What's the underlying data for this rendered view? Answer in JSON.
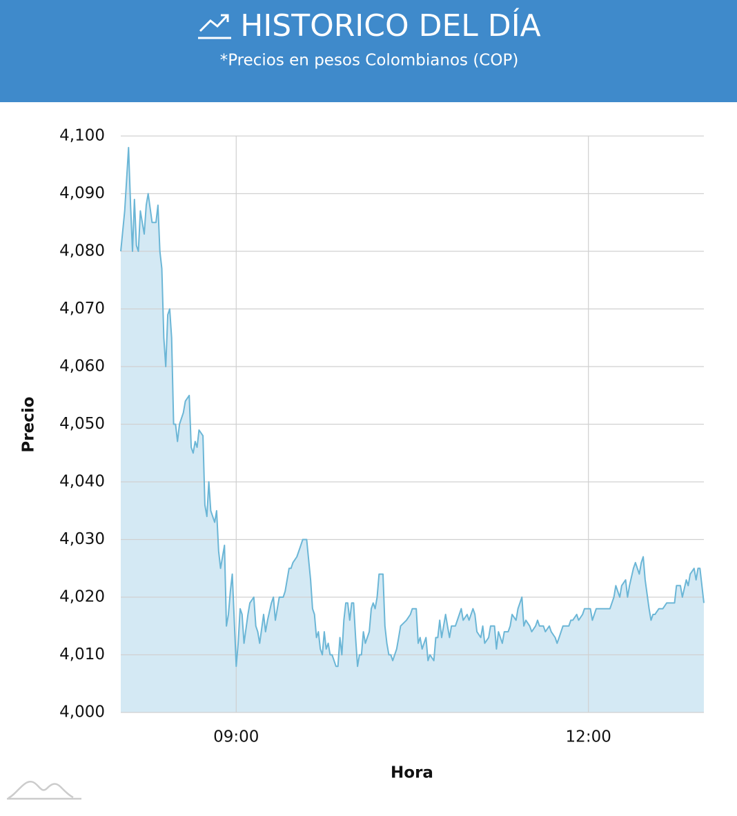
{
  "chart_data": {
    "type": "line",
    "title": "HISTORICO DEL DÍA",
    "subtitle": "*Precios en pesos Colombianos (COP)",
    "x_label": "Hora",
    "y_label": "Precio",
    "color": "#6bb6d6",
    "area": true,
    "area_color": "#d4e9f4",
    "grid": true,
    "xlim": [
      481,
      779
    ],
    "xticks": [
      {
        "value": 540,
        "label": "09:00"
      },
      {
        "value": 720,
        "label": "12:00"
      }
    ],
    "ylim": [
      4000,
      4100
    ],
    "yticks": [
      {
        "value": 4000,
        "label": "4,000"
      },
      {
        "value": 4010,
        "label": "4,010"
      },
      {
        "value": 4020,
        "label": "4,020"
      },
      {
        "value": 4030,
        "label": "4,030"
      },
      {
        "value": 4040,
        "label": "4,040"
      },
      {
        "value": 4050,
        "label": "4,050"
      },
      {
        "value": 4060,
        "label": "4,060"
      },
      {
        "value": 4070,
        "label": "4,070"
      },
      {
        "value": 4080,
        "label": "4,080"
      },
      {
        "value": 4090,
        "label": "4,090"
      },
      {
        "value": 4100,
        "label": "4,100"
      }
    ],
    "x": [
      481,
      483,
      485,
      486,
      487,
      488,
      489,
      490,
      491,
      493,
      494,
      495,
      497,
      499,
      500,
      501,
      502,
      503,
      504,
      505,
      506,
      507,
      508,
      509,
      510,
      511,
      513,
      514,
      516,
      517,
      518,
      519,
      520,
      521,
      523,
      524,
      525,
      526,
      527,
      529,
      530,
      531,
      532,
      534,
      535,
      536,
      537,
      538,
      540,
      541,
      542,
      543,
      544,
      546,
      547,
      549,
      550,
      551,
      552,
      554,
      555,
      556,
      558,
      559,
      560,
      562,
      564,
      565,
      567,
      568,
      569,
      571,
      573,
      574,
      576,
      578,
      579,
      580,
      581,
      582,
      583,
      584,
      585,
      586,
      587,
      588,
      589,
      591,
      592,
      593,
      594,
      595,
      596,
      597,
      598,
      599,
      600,
      601,
      602,
      603,
      604,
      605,
      606,
      608,
      609,
      610,
      611,
      612,
      613,
      615,
      616,
      617,
      618,
      619,
      620,
      622,
      623,
      624,
      627,
      629,
      630,
      632,
      633,
      634,
      635,
      637,
      638,
      639,
      641,
      642,
      643,
      644,
      645,
      647,
      648,
      649,
      650,
      652,
      654,
      655,
      656,
      658,
      659,
      661,
      662,
      663,
      665,
      666,
      667,
      669,
      670,
      672,
      673,
      674,
      676,
      677,
      679,
      680,
      681,
      683,
      684,
      686,
      687,
      688,
      690,
      691,
      693,
      694,
      695,
      697,
      698,
      700,
      701,
      703,
      704,
      705,
      707,
      708,
      710,
      711,
      712,
      714,
      715,
      717,
      718,
      720,
      721,
      722,
      724,
      726,
      728,
      730,
      731,
      733,
      734,
      736,
      737,
      739,
      740,
      741,
      743,
      744,
      746,
      747,
      748,
      749,
      751,
      752,
      753,
      754,
      756,
      758,
      760,
      762,
      764,
      765,
      767,
      768,
      770,
      771,
      772,
      774,
      775,
      776,
      777,
      779
    ],
    "values": [
      4080,
      4087,
      4098,
      4088,
      4080,
      4089,
      4081,
      4080,
      4087,
      4083,
      4088,
      4090,
      4085,
      4085,
      4088,
      4080,
      4077,
      4065,
      4060,
      4069,
      4070,
      4065,
      4050,
      4050,
      4047,
      4050,
      4052,
      4054,
      4055,
      4046,
      4045,
      4047,
      4046,
      4049,
      4048,
      4036,
      4034,
      4040,
      4035,
      4033,
      4035,
      4028,
      4025,
      4029,
      4015,
      4017,
      4021,
      4024,
      4008,
      4012,
      4018,
      4017,
      4012,
      4017,
      4019,
      4020,
      4015,
      4014,
      4012,
      4017,
      4014,
      4016,
      4019,
      4020,
      4016,
      4020,
      4020,
      4021,
      4025,
      4025,
      4026,
      4027,
      4029,
      4030,
      4030,
      4023,
      4018,
      4017,
      4013,
      4014,
      4011,
      4010,
      4014,
      4011,
      4012,
      4010,
      4010,
      4008,
      4008,
      4013,
      4010,
      4016,
      4019,
      4019,
      4016,
      4019,
      4019,
      4013,
      4008,
      4010,
      4010,
      4014,
      4012,
      4014,
      4018,
      4019,
      4018,
      4020,
      4024,
      4024,
      4015,
      4012,
      4010,
      4010,
      4009,
      4011,
      4013,
      4015,
      4016,
      4017,
      4018,
      4018,
      4012,
      4013,
      4011,
      4013,
      4009,
      4010,
      4009,
      4013,
      4013,
      4016,
      4013,
      4017,
      4015,
      4013,
      4015,
      4015,
      4017,
      4018,
      4016,
      4017,
      4016,
      4018,
      4017,
      4014,
      4013,
      4015,
      4012,
      4013,
      4015,
      4015,
      4011,
      4014,
      4012,
      4014,
      4014,
      4015,
      4017,
      4016,
      4018,
      4020,
      4015,
      4016,
      4015,
      4014,
      4015,
      4016,
      4015,
      4015,
      4014,
      4015,
      4014,
      4013,
      4012,
      4013,
      4015,
      4015,
      4015,
      4016,
      4016,
      4017,
      4016,
      4017,
      4018,
      4018,
      4018,
      4016,
      4018,
      4018,
      4018,
      4018,
      4018,
      4020,
      4022,
      4020,
      4022,
      4023,
      4020,
      4022,
      4025,
      4026,
      4024,
      4026,
      4027,
      4023,
      4018,
      4016,
      4017,
      4017,
      4018,
      4018,
      4019,
      4019,
      4019,
      4022,
      4022,
      4020,
      4023,
      4022,
      4024,
      4025,
      4023,
      4025,
      4025,
      4019
    ]
  }
}
